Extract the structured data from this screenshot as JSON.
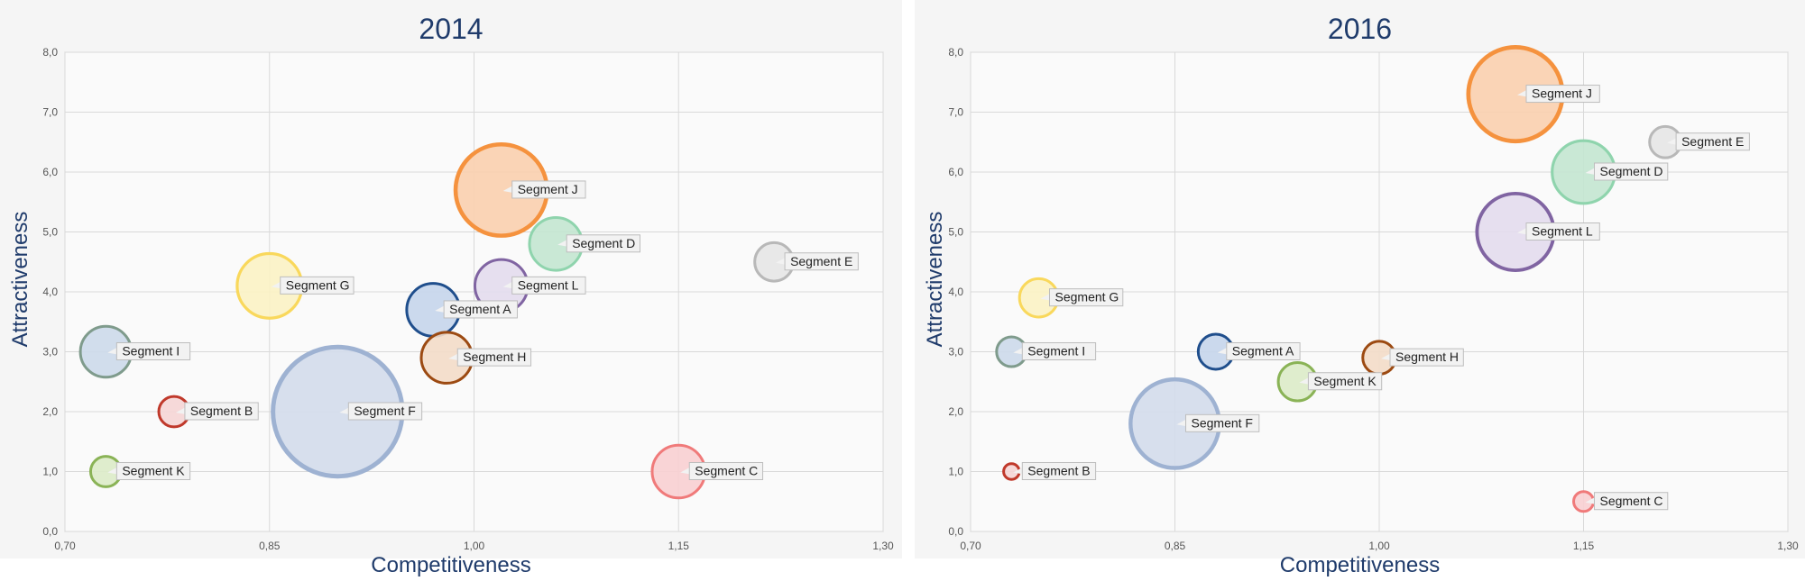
{
  "chart_data": [
    {
      "type": "scatter",
      "title": "2014",
      "xlabel": "Competitiveness",
      "ylabel": "Attractiveness",
      "xlim": [
        0.7,
        1.3
      ],
      "ylim": [
        0.0,
        8.0
      ],
      "x_ticks": [
        "0,70",
        "0,85",
        "1,00",
        "1,15",
        "1,30"
      ],
      "y_ticks": [
        "0,0",
        "1,0",
        "2,0",
        "3,0",
        "4,0",
        "5,0",
        "6,0",
        "7,0",
        "8,0"
      ],
      "grid": true,
      "series": [
        {
          "name": "Segment J",
          "x": 1.02,
          "y": 5.7,
          "size": 9.0,
          "color": "#f5923e",
          "fill": "#f9cfae"
        },
        {
          "name": "Segment D",
          "x": 1.06,
          "y": 4.8,
          "size": 3.0,
          "color": "#8fd4ad",
          "fill": "#c3e6d0"
        },
        {
          "name": "Segment E",
          "x": 1.22,
          "y": 4.5,
          "size": 1.6,
          "color": "#b8b8b8",
          "fill": "#e6e6e6"
        },
        {
          "name": "Segment G",
          "x": 0.85,
          "y": 4.1,
          "size": 4.5,
          "color": "#f9d85c",
          "fill": "#fbf2c4"
        },
        {
          "name": "Segment L",
          "x": 1.02,
          "y": 4.1,
          "size": 3.0,
          "color": "#8064a2",
          "fill": "#e3dced"
        },
        {
          "name": "Segment A",
          "x": 0.97,
          "y": 3.7,
          "size": 3.0,
          "color": "#1f4e8c",
          "fill": "#c5d5eb"
        },
        {
          "name": "Segment I",
          "x": 0.73,
          "y": 3.0,
          "size": 2.8,
          "color": "#7f9b8c",
          "fill": "#ccd9ea"
        },
        {
          "name": "Segment H",
          "x": 0.98,
          "y": 2.9,
          "size": 2.8,
          "color": "#9c4a12",
          "fill": "#f3dcc8"
        },
        {
          "name": "Segment F",
          "x": 0.9,
          "y": 2.0,
          "size": 18.0,
          "color": "#9eb2d2",
          "fill": "#d3dceb"
        },
        {
          "name": "Segment B",
          "x": 0.78,
          "y": 2.0,
          "size": 1.0,
          "color": "#c0392b",
          "fill": "#f5d5d5"
        },
        {
          "name": "Segment K",
          "x": 0.73,
          "y": 1.0,
          "size": 1.0,
          "color": "#8ab356",
          "fill": "#dcebc8"
        },
        {
          "name": "Segment C",
          "x": 1.15,
          "y": 1.0,
          "size": 3.0,
          "color": "#f07a7a",
          "fill": "#f8cfd1"
        }
      ]
    },
    {
      "type": "scatter",
      "title": "2016",
      "xlabel": "Competitiveness",
      "ylabel": "Attractiveness",
      "xlim": [
        0.7,
        1.3
      ],
      "ylim": [
        0.0,
        8.0
      ],
      "x_ticks": [
        "0,70",
        "0,85",
        "1,00",
        "1,15",
        "1,30"
      ],
      "y_ticks": [
        "0,0",
        "1,0",
        "2,0",
        "3,0",
        "4,0",
        "5,0",
        "6,0",
        "7,0",
        "8,0"
      ],
      "grid": true,
      "series": [
        {
          "name": "Segment J",
          "x": 1.1,
          "y": 7.3,
          "size": 18.0,
          "color": "#f5923e",
          "fill": "#f9cfae"
        },
        {
          "name": "Segment E",
          "x": 1.21,
          "y": 6.5,
          "size": 2.0,
          "color": "#b8b8b8",
          "fill": "#e6e6e6"
        },
        {
          "name": "Segment D",
          "x": 1.15,
          "y": 6.0,
          "size": 8.0,
          "color": "#8fd4ad",
          "fill": "#c3e6d0"
        },
        {
          "name": "Segment L",
          "x": 1.1,
          "y": 5.0,
          "size": 12.0,
          "color": "#8064a2",
          "fill": "#e3dced"
        },
        {
          "name": "Segment G",
          "x": 0.75,
          "y": 3.9,
          "size": 3.0,
          "color": "#f9d85c",
          "fill": "#fbf2c4"
        },
        {
          "name": "Segment I",
          "x": 0.73,
          "y": 3.0,
          "size": 1.8,
          "color": "#7f9b8c",
          "fill": "#ccd9ea"
        },
        {
          "name": "Segment A",
          "x": 0.88,
          "y": 3.0,
          "size": 2.5,
          "color": "#1f4e8c",
          "fill": "#c5d5eb"
        },
        {
          "name": "Segment H",
          "x": 1.0,
          "y": 2.9,
          "size": 2.2,
          "color": "#9c4a12",
          "fill": "#f3dcc8"
        },
        {
          "name": "Segment K",
          "x": 0.94,
          "y": 2.5,
          "size": 3.0,
          "color": "#8ab356",
          "fill": "#dcebc8"
        },
        {
          "name": "Segment F",
          "x": 0.85,
          "y": 1.8,
          "size": 16.0,
          "color": "#9eb2d2",
          "fill": "#d3dceb"
        },
        {
          "name": "Segment B",
          "x": 0.73,
          "y": 1.0,
          "size": 0.5,
          "color": "#c0392b",
          "fill": "#f5d5d5"
        },
        {
          "name": "Segment C",
          "x": 1.15,
          "y": 0.5,
          "size": 0.8,
          "color": "#f07a7a",
          "fill": "#f8cfd1"
        }
      ]
    }
  ]
}
